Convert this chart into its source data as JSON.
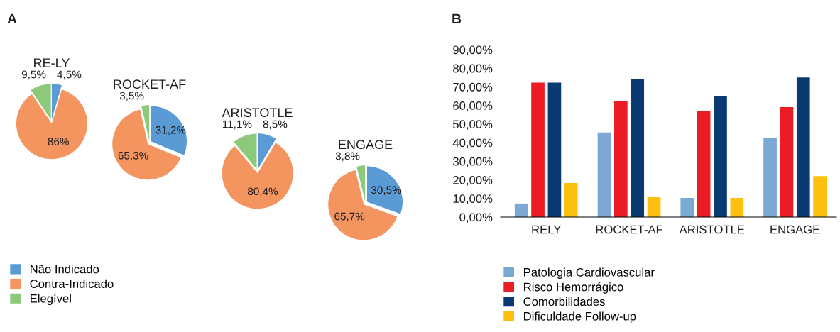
{
  "chart_data": [
    {
      "type": "pie",
      "title": "RE-LY",
      "categories": [
        "Não Indicado",
        "Contra-Indicado",
        "Elegível"
      ],
      "values": [
        4.5,
        86,
        9.5
      ],
      "colors": [
        "#5b9bd5",
        "#f4955f",
        "#8cc97a"
      ],
      "value_labels": [
        "4,5%",
        "86%",
        "9,5%"
      ],
      "legend": "bottom",
      "annotations": [
        "A"
      ]
    },
    {
      "type": "pie",
      "title": "ROCKET-AF",
      "values": [
        31.2,
        65.3,
        3.5
      ],
      "colors": [
        "#5b9bd5",
        "#f4955f",
        "#8cc97a"
      ],
      "value_labels": [
        "31,2%",
        "65,3%",
        "3,5%"
      ]
    },
    {
      "type": "pie",
      "title": "ARISTOTLE",
      "values": [
        8.5,
        80.4,
        11.1
      ],
      "colors": [
        "#5b9bd5",
        "#f4955f",
        "#8cc97a"
      ],
      "value_labels": [
        "8,5%",
        "80,4%",
        "11,1%"
      ]
    },
    {
      "type": "pie",
      "title": "ENGAGE",
      "values": [
        30.5,
        65.7,
        3.8
      ],
      "colors": [
        "#5b9bd5",
        "#f4955f",
        "#8cc97a"
      ],
      "value_labels": [
        "30,5%",
        "65,7%",
        "3,8%"
      ]
    },
    {
      "type": "bar",
      "categories": [
        "RELY",
        "ROCKET-AF",
        "ARISTOTLE",
        "ENGAGE"
      ],
      "annotations": [
        "B"
      ],
      "legend": "bottom left",
      "grid": false,
      "ylim": [
        0,
        90
      ],
      "yticks": [
        {
          "value": 0,
          "label": "0,00%"
        },
        {
          "value": 10,
          "label": "10,00%"
        },
        {
          "value": 20,
          "label": "20,00%"
        },
        {
          "value": 30,
          "label": "30,00%"
        },
        {
          "value": 40,
          "label": "40,00%"
        },
        {
          "value": 50,
          "label": "50,00%"
        },
        {
          "value": 60,
          "label": "60,00%"
        },
        {
          "value": 70,
          "label": "70,00%"
        },
        {
          "value": 80,
          "label": "80,00%"
        },
        {
          "value": 90,
          "label": "90,00%"
        }
      ],
      "series": [
        {
          "name": "Patologia Cardiovascular",
          "color": "#7aa9d2",
          "values": [
            7.3,
            45.5,
            10.3,
            42.5
          ]
        },
        {
          "name": "Risco Hemorrágico",
          "color": "#ec1c24",
          "values": [
            72.3,
            62.5,
            56.8,
            59.1
          ]
        },
        {
          "name": "Comorbilidades",
          "color": "#0b3a73",
          "values": [
            72.3,
            74.3,
            64.8,
            75.0
          ]
        },
        {
          "name": "Dificuldade Follow-up",
          "color": "#fdc010",
          "values": [
            18.3,
            10.7,
            10.3,
            22.0
          ]
        }
      ]
    }
  ]
}
